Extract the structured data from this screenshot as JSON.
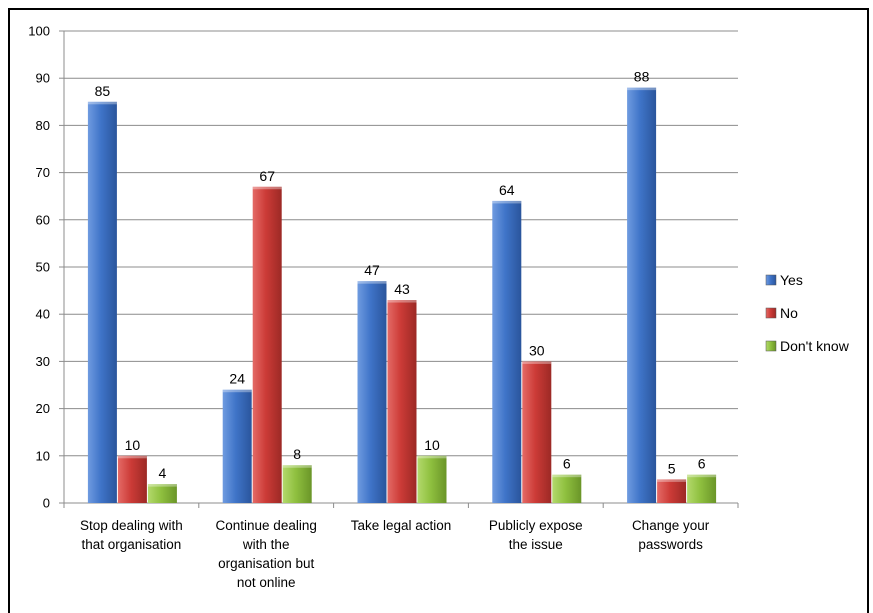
{
  "chart_data": {
    "type": "bar",
    "title": "",
    "xlabel": "",
    "ylabel": "",
    "ylim": [
      0,
      100
    ],
    "yticks": [
      0,
      10,
      20,
      30,
      40,
      50,
      60,
      70,
      80,
      90,
      100
    ],
    "grid": true,
    "legend_position": "right",
    "categories": [
      [
        "Stop dealing with",
        "that organisation"
      ],
      [
        "Continue dealing",
        "with the",
        "organisation but",
        "not online"
      ],
      [
        "Take legal action"
      ],
      [
        "Publicly expose",
        "the issue"
      ],
      [
        "Change your",
        "passwords"
      ]
    ],
    "series": [
      {
        "name": "Yes",
        "color": "#3f74c8",
        "values": [
          85,
          24,
          47,
          64,
          88
        ]
      },
      {
        "name": "No",
        "color": "#cc3b37",
        "values": [
          10,
          67,
          43,
          30,
          5
        ]
      },
      {
        "name": "Don't know",
        "color": "#8fc03f",
        "values": [
          4,
          8,
          10,
          6,
          6
        ]
      }
    ]
  }
}
